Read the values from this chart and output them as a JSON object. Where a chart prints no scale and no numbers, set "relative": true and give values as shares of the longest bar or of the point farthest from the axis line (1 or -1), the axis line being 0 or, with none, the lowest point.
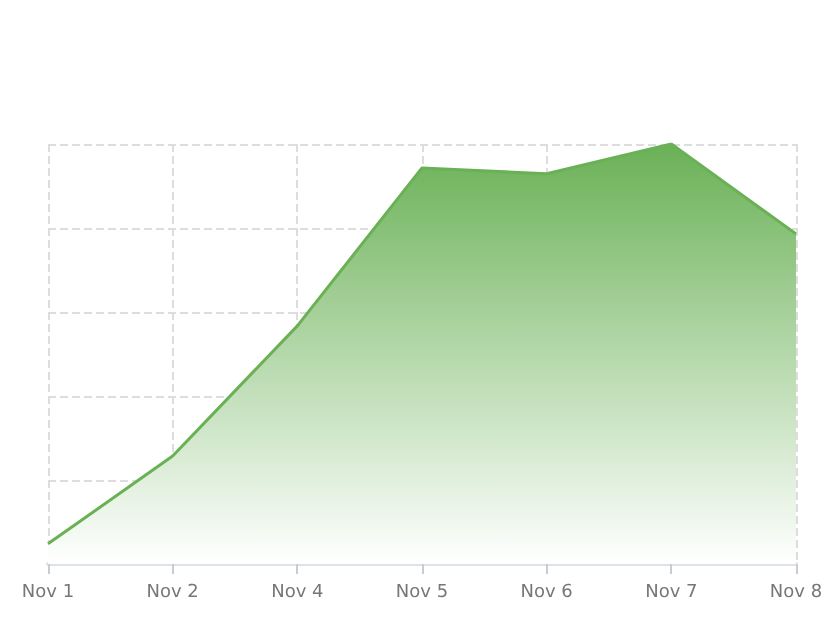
{
  "chart_data": {
    "type": "area",
    "relative": true,
    "categories": [
      "Nov 1",
      "Nov 2",
      "Nov 4",
      "Nov 5",
      "Nov 6",
      "Nov 7",
      "Nov 8"
    ],
    "values": [
      0.048,
      0.257,
      0.567,
      0.943,
      0.929,
      1,
      0.786
    ],
    "color": "#6ab156",
    "grid": true,
    "marker": "none",
    "line_style": "solid"
  }
}
